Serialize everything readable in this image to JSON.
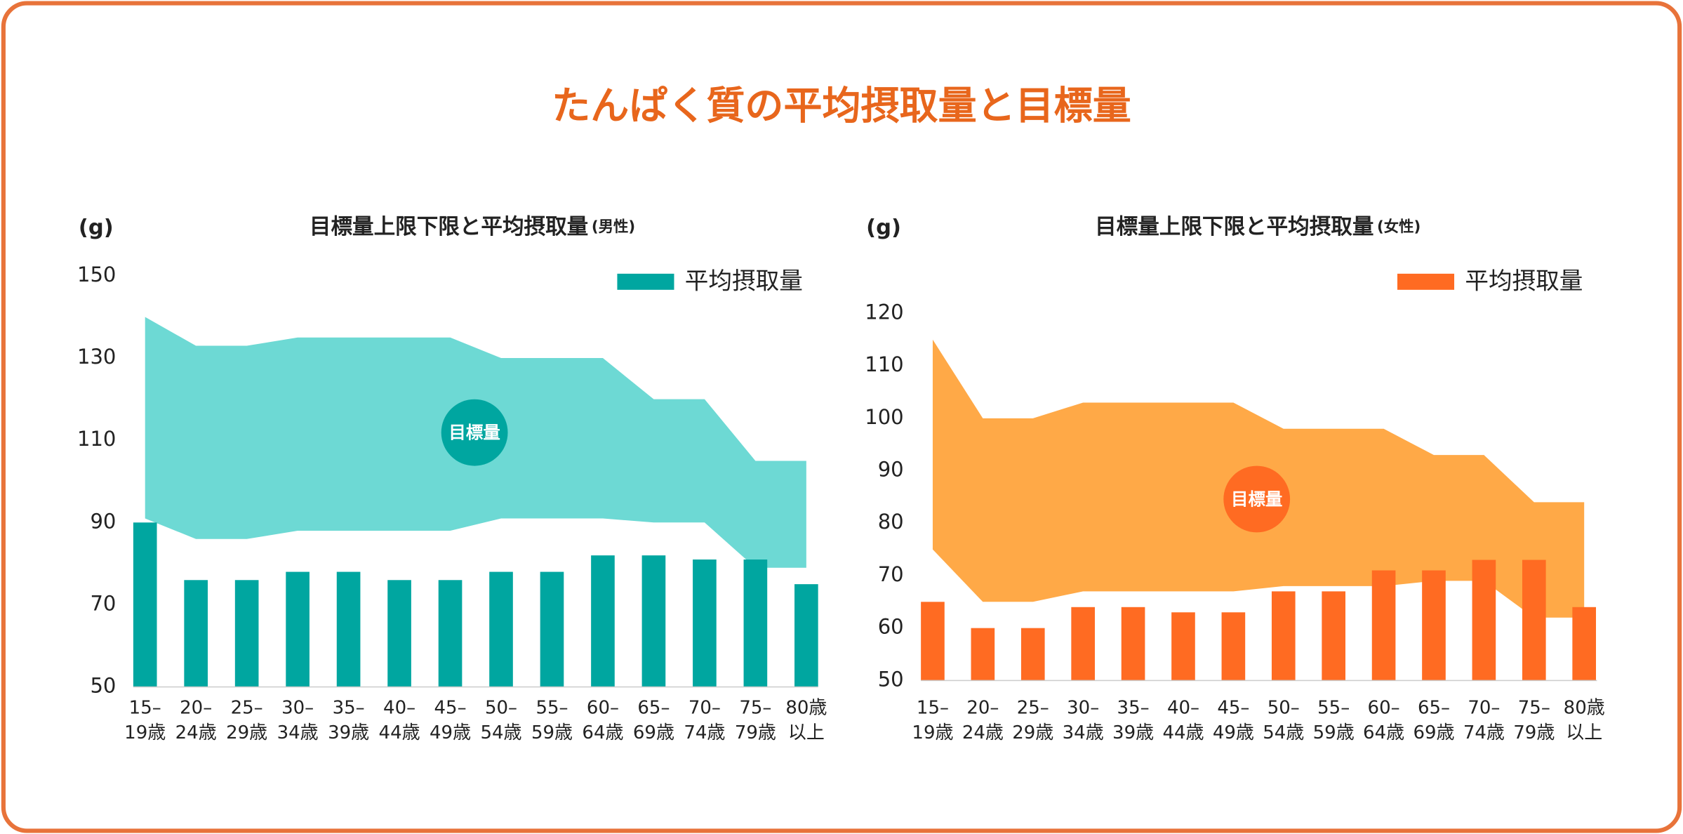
{
  "header": {
    "title": "たんぱく質の平均摂取量と目標量"
  },
  "chart_data": [
    {
      "type": "bar",
      "title": "目標量上限下限と平均摂取量",
      "subtitle": "(男性)",
      "y_label": "(g)",
      "categories": [
        [
          "15–",
          "19歳"
        ],
        [
          "20–",
          "24歳"
        ],
        [
          "25–",
          "29歳"
        ],
        [
          "30–",
          "34歳"
        ],
        [
          "35–",
          "39歳"
        ],
        [
          "40–",
          "44歳"
        ],
        [
          "45–",
          "49歳"
        ],
        [
          "50–",
          "54歳"
        ],
        [
          "55–",
          "59歳"
        ],
        [
          "60–",
          "64歳"
        ],
        [
          "65–",
          "69歳"
        ],
        [
          "70–",
          "74歳"
        ],
        [
          "75–",
          "79歳"
        ],
        [
          "80歳",
          "以上"
        ]
      ],
      "series": [
        {
          "name": "平均摂取量",
          "color": "#00a6a0",
          "values": [
            90,
            76,
            76,
            78,
            78,
            76,
            76,
            78,
            78,
            82,
            82,
            81,
            81,
            75
          ]
        }
      ],
      "target": {
        "name": "目標量",
        "color": "#6dd9d4",
        "label_color": "#00a6a0",
        "upper": [
          140,
          133,
          133,
          135,
          135,
          135,
          135,
          130,
          130,
          130,
          120,
          120,
          105,
          105
        ],
        "lower": [
          91,
          86,
          86,
          88,
          88,
          88,
          88,
          91,
          91,
          91,
          90,
          90,
          79,
          79
        ]
      },
      "ylim": [
        50,
        150
      ],
      "yticks": [
        50,
        70,
        90,
        110,
        130,
        150
      ],
      "grid": false,
      "legend": "upper right"
    },
    {
      "type": "bar",
      "title": "目標量上限下限と平均摂取量",
      "subtitle": "(女性)",
      "y_label": "(g)",
      "categories": [
        [
          "15–",
          "19歳"
        ],
        [
          "20–",
          "24歳"
        ],
        [
          "25–",
          "29歳"
        ],
        [
          "30–",
          "34歳"
        ],
        [
          "35–",
          "39歳"
        ],
        [
          "40–",
          "44歳"
        ],
        [
          "45–",
          "49歳"
        ],
        [
          "50–",
          "54歳"
        ],
        [
          "55–",
          "59歳"
        ],
        [
          "60–",
          "64歳"
        ],
        [
          "65–",
          "69歳"
        ],
        [
          "70–",
          "74歳"
        ],
        [
          "75–",
          "79歳"
        ],
        [
          "80歳",
          "以上"
        ]
      ],
      "series": [
        {
          "name": "平均摂取量",
          "color": "#ff6b22",
          "values": [
            65,
            60,
            60,
            64,
            64,
            63,
            63,
            67,
            67,
            71,
            71,
            73,
            73,
            64
          ]
        }
      ],
      "target": {
        "name": "目標量",
        "color": "#ffa947",
        "label_color": "#ff6b22",
        "upper": [
          115,
          100,
          100,
          103,
          103,
          103,
          103,
          98,
          98,
          98,
          93,
          93,
          84,
          84
        ],
        "lower": [
          75,
          65,
          65,
          67,
          67,
          67,
          67,
          68,
          68,
          68,
          69,
          69,
          62,
          62
        ]
      },
      "ylim": [
        50,
        120
      ],
      "yticks": [
        50,
        60,
        70,
        80,
        90,
        100,
        110,
        120
      ],
      "grid": false,
      "legend": "upper right"
    }
  ]
}
